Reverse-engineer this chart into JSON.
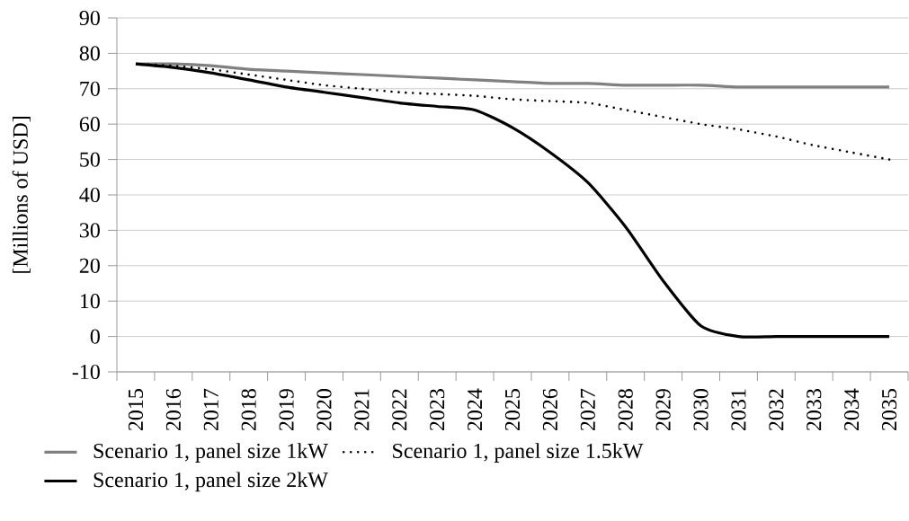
{
  "chart_data": {
    "type": "line",
    "ylabel": "[Millions of USD]",
    "categories": [
      "2015",
      "2016",
      "2017",
      "2018",
      "2019",
      "2020",
      "2021",
      "2022",
      "2023",
      "2024",
      "2025",
      "2026",
      "2027",
      "2028",
      "2029",
      "2030",
      "2031",
      "2032",
      "2033",
      "2034",
      "2035"
    ],
    "ylim": [
      -10,
      90
    ],
    "yticks": [
      -10,
      0,
      10,
      20,
      30,
      40,
      50,
      60,
      70,
      80,
      90
    ],
    "grid": "y",
    "legend": "bottom",
    "series": [
      {
        "name": "Scenario 1, panel size 1kW",
        "color": "#808080",
        "line_style": "solid",
        "values": [
          77,
          77,
          76.5,
          75.5,
          75,
          74.5,
          74,
          73.5,
          73,
          72.5,
          72,
          71.5,
          71.5,
          71,
          71,
          71,
          70.5,
          70.5,
          70.5,
          70.5,
          70.5
        ]
      },
      {
        "name": "Scenario 1, panel size 1.5kW",
        "color": "#000000",
        "line_style": "dotted",
        "values": [
          77,
          76.5,
          75.5,
          74,
          72.5,
          71,
          70,
          69,
          68.5,
          68,
          67,
          66.5,
          66,
          64,
          62,
          60,
          58.5,
          56.5,
          54,
          52,
          50
        ]
      },
      {
        "name": "Scenario 1, panel size 2kW",
        "color": "#000000",
        "line_style": "solid",
        "values": [
          77,
          76,
          74.5,
          72.5,
          70.5,
          69,
          67.5,
          66,
          65,
          64,
          59,
          52,
          43.5,
          31,
          15.7,
          3,
          0,
          0,
          0,
          0,
          0
        ]
      }
    ]
  }
}
